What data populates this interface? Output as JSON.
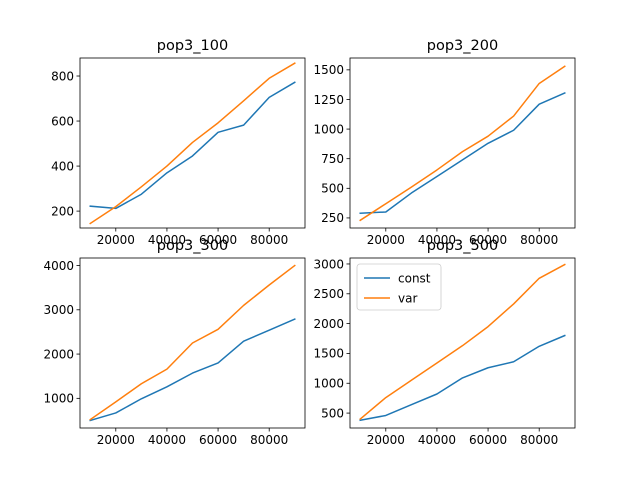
{
  "chart_data": [
    {
      "type": "line",
      "title": "pop3_100",
      "xlabel": "",
      "ylabel": "",
      "x": [
        10000,
        20000,
        30000,
        40000,
        50000,
        60000,
        70000,
        80000,
        90000
      ],
      "xlim": [
        6000,
        94000
      ],
      "ylim": [
        125,
        880
      ],
      "xticks": [
        20000,
        40000,
        60000,
        80000
      ],
      "yticks": [
        200,
        400,
        600,
        800
      ],
      "legend": false,
      "series": [
        {
          "name": "const",
          "color": "#1f77b4",
          "values": [
            222,
            212,
            275,
            370,
            445,
            550,
            582,
            705,
            772
          ]
        },
        {
          "name": "var",
          "color": "#ff7f0e",
          "values": [
            145,
            220,
            308,
            400,
            505,
            592,
            690,
            790,
            857
          ]
        }
      ]
    },
    {
      "type": "line",
      "title": "pop3_200",
      "xlabel": "",
      "ylabel": "",
      "x": [
        10000,
        20000,
        30000,
        40000,
        50000,
        60000,
        70000,
        80000,
        90000
      ],
      "xlim": [
        6000,
        94000
      ],
      "ylim": [
        165,
        1600
      ],
      "xticks": [
        20000,
        40000,
        60000,
        80000
      ],
      "yticks": [
        250,
        500,
        750,
        1000,
        1250,
        1500
      ],
      "legend": false,
      "series": [
        {
          "name": "const",
          "color": "#1f77b4",
          "values": [
            290,
            300,
            460,
            600,
            740,
            880,
            990,
            1210,
            1305
          ]
        },
        {
          "name": "var",
          "color": "#ff7f0e",
          "values": [
            230,
            370,
            510,
            655,
            810,
            940,
            1110,
            1385,
            1530
          ]
        }
      ]
    },
    {
      "type": "line",
      "title": "pop3_300",
      "xlabel": "",
      "ylabel": "",
      "x": [
        10000,
        20000,
        30000,
        40000,
        50000,
        60000,
        70000,
        80000,
        90000
      ],
      "xlim": [
        6000,
        94000
      ],
      "ylim": [
        330,
        4170
      ],
      "xticks": [
        20000,
        40000,
        60000,
        80000
      ],
      "yticks": [
        1000,
        2000,
        3000,
        4000
      ],
      "legend": false,
      "series": [
        {
          "name": "const",
          "color": "#1f77b4",
          "values": [
            500,
            670,
            990,
            1260,
            1570,
            1800,
            2290,
            2540,
            2790
          ]
        },
        {
          "name": "var",
          "color": "#ff7f0e",
          "values": [
            520,
            920,
            1330,
            1660,
            2250,
            2560,
            3100,
            3560,
            4000
          ]
        }
      ]
    },
    {
      "type": "line",
      "title": "pop3_500",
      "xlabel": "",
      "ylabel": "",
      "x": [
        10000,
        20000,
        30000,
        40000,
        50000,
        60000,
        70000,
        80000,
        90000
      ],
      "xlim": [
        6000,
        94000
      ],
      "ylim": [
        250,
        3100
      ],
      "xticks": [
        20000,
        40000,
        60000,
        80000
      ],
      "yticks": [
        500,
        1000,
        1500,
        2000,
        2500,
        3000
      ],
      "legend": true,
      "legend_position": "top-left",
      "series": [
        {
          "name": "const",
          "color": "#1f77b4",
          "values": [
            380,
            460,
            640,
            820,
            1090,
            1260,
            1360,
            1620,
            1800
          ]
        },
        {
          "name": "var",
          "color": "#ff7f0e",
          "values": [
            400,
            760,
            1050,
            1340,
            1630,
            1950,
            2330,
            2760,
            2990
          ]
        }
      ]
    }
  ]
}
